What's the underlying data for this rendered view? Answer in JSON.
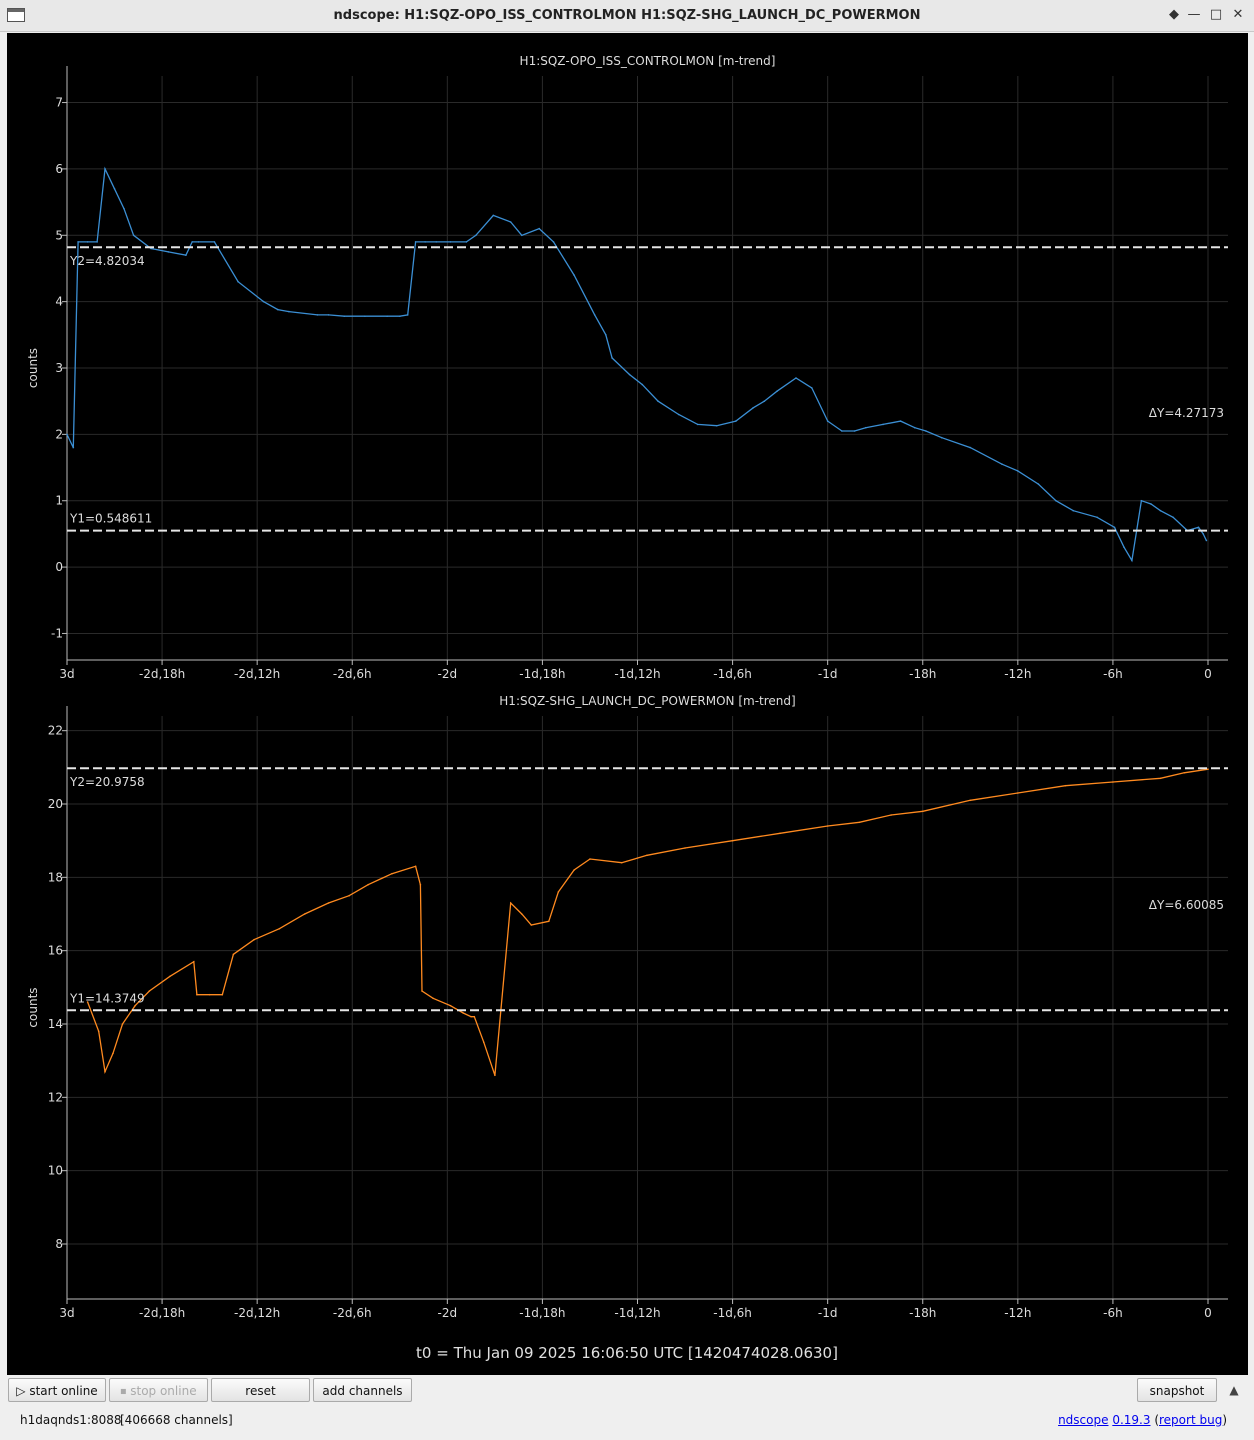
{
  "window": {
    "title": "ndscope: H1:SQZ-OPO_ISS_CONTROLMON H1:SQZ-SHG_LAUNCH_DC_POWERMON",
    "buttons": {
      "close": "✕",
      "minimize": "—",
      "maximize": "□",
      "restore": "◆"
    }
  },
  "colors": {
    "background": "#000000",
    "grid": "#2a2a2a",
    "axis": "#bbbbbb",
    "text": "#dddddd",
    "series1": "#3b8fd4",
    "series2": "#ff8a1f",
    "cursor": "#e6e6e6"
  },
  "x_ticks": [
    "3d",
    "-2d,18h",
    "-2d,12h",
    "-2d,6h",
    "-2d",
    "-1d,18h",
    "-1d,12h",
    "-1d,6h",
    "-1d",
    "-18h",
    "-12h",
    "-6h",
    "0"
  ],
  "t0": "t0 = Thu Jan 09 2025 16:06:50 UTC [1420474028.0630]",
  "chart_data": [
    {
      "type": "line",
      "title": "H1:SQZ-OPO_ISS_CONTROLMON [m-trend]",
      "ylabel": "counts",
      "xlabel": "",
      "x_unit": "hours relative to t0",
      "xlim": [
        -72,
        0
      ],
      "ylim": [
        -1.4,
        7.4
      ],
      "yticks": [
        -1,
        0,
        1,
        2,
        3,
        4,
        5,
        6,
        7
      ],
      "grid": true,
      "cursors": {
        "y1": 0.548611,
        "y1_label": "Y1=0.548611",
        "y2": 4.82034,
        "y2_label": "Y2=4.82034",
        "delta_label": "ΔY=4.27173"
      },
      "series": [
        {
          "x": [
            -72,
            -71.6,
            -71.3,
            -70.7,
            -70.1,
            -69.6,
            -69.0,
            -68.4,
            -67.8,
            -66.7,
            -65.6,
            -64.5,
            -64.1,
            -63.7,
            -62.7,
            -61.2,
            -59.6,
            -58.7,
            -58.0,
            -56.2,
            -55.5,
            -54.5,
            -53.2,
            -51.8,
            -51.0,
            -50.5,
            -50.0,
            -49.4,
            -48.7,
            -47.8,
            -46.8,
            -46.2,
            -45.1,
            -44.0,
            -43.3,
            -42.2,
            -41.3,
            -40.0,
            -38.7,
            -38.0,
            -37.6,
            -36.5,
            -35.7,
            -34.7,
            -33.4,
            -32.2,
            -31.0,
            -29.8,
            -28.7,
            -28.0,
            -27.2,
            -26.0,
            -25.0,
            -24.0,
            -23.1,
            -22.3,
            -21.6,
            -20.5,
            -19.4,
            -18.5,
            -17.8,
            -16.8,
            -15.0,
            -13.0,
            -12.0,
            -10.7,
            -9.6,
            -8.5,
            -7.0,
            -5.9,
            -5.3,
            -4.8,
            -4.2,
            -3.6,
            -3.0,
            -2.2,
            -1.3,
            -0.6,
            -0.3,
            -0.1
          ],
          "y": [
            2.0,
            1.8,
            4.9,
            4.9,
            4.9,
            6.0,
            5.7,
            5.4,
            5.0,
            4.8,
            4.75,
            4.7,
            4.9,
            4.9,
            4.9,
            4.3,
            4.0,
            3.88,
            3.85,
            3.8,
            3.8,
            3.78,
            3.78,
            3.78,
            3.78,
            3.8,
            4.9,
            4.9,
            4.9,
            4.9,
            4.9,
            5.0,
            5.3,
            5.2,
            5.0,
            5.1,
            4.9,
            4.4,
            3.8,
            3.5,
            3.15,
            2.9,
            2.75,
            2.5,
            2.3,
            2.15,
            2.13,
            2.2,
            2.4,
            2.5,
            2.65,
            2.85,
            2.7,
            2.2,
            2.05,
            2.05,
            2.1,
            2.15,
            2.2,
            2.1,
            2.05,
            1.95,
            1.8,
            1.55,
            1.45,
            1.25,
            1.0,
            0.85,
            0.75,
            0.6,
            0.3,
            0.1,
            1.0,
            0.95,
            0.85,
            0.75,
            0.55,
            0.6,
            0.5,
            0.4
          ]
        }
      ]
    },
    {
      "type": "line",
      "title": "H1:SQZ-SHG_LAUNCH_DC_POWERMON [m-trend]",
      "ylabel": "counts",
      "xlabel": "",
      "x_unit": "hours relative to t0",
      "xlim": [
        -72,
        0
      ],
      "ylim": [
        6.5,
        22.4
      ],
      "yticks": [
        8,
        10,
        12,
        14,
        16,
        18,
        20,
        22
      ],
      "grid": true,
      "cursors": {
        "y1": 14.3749,
        "y1_label": "Y1=14.3749",
        "y2": 20.9758,
        "y2_label": "Y2=20.9758",
        "delta_label": "ΔY=6.60085"
      },
      "series": [
        {
          "x": [
            -70.7,
            -70.0,
            -69.6,
            -69.1,
            -68.5,
            -67.7,
            -66.8,
            -65.5,
            -64.0,
            -63.8,
            -63.0,
            -62.2,
            -61.5,
            -60.2,
            -58.6,
            -57.0,
            -55.5,
            -54.2,
            -53.0,
            -51.5,
            -50.0,
            -49.7,
            -49.6,
            -48.9,
            -47.8,
            -47.0,
            -46.5,
            -46.3,
            -45.7,
            -45.0,
            -44.0,
            -43.3,
            -42.7,
            -41.6,
            -41.0,
            -40.0,
            -39.0,
            -37.0,
            -35.4,
            -33.0,
            -30.0,
            -27.0,
            -24.0,
            -22.0,
            -20.0,
            -18.0,
            -15.0,
            -12.0,
            -9.0,
            -6.0,
            -3.0,
            -1.5,
            0
          ],
          "y": [
            14.6,
            13.8,
            12.7,
            13.2,
            14.0,
            14.5,
            14.9,
            15.3,
            15.7,
            14.8,
            14.8,
            14.8,
            15.9,
            16.3,
            16.6,
            17.0,
            17.3,
            17.5,
            17.8,
            18.1,
            18.3,
            17.8,
            14.9,
            14.7,
            14.5,
            14.3,
            14.2,
            14.2,
            13.5,
            12.6,
            17.3,
            17.0,
            16.7,
            16.8,
            17.6,
            18.2,
            18.5,
            18.4,
            18.6,
            18.8,
            19.0,
            19.2,
            19.4,
            19.5,
            19.7,
            19.8,
            20.1,
            20.3,
            20.5,
            20.6,
            20.7,
            20.85,
            20.95
          ]
        }
      ]
    }
  ],
  "toolbar": {
    "start_online": "▷ start online",
    "stop_online": "⏹ stop online",
    "reset": "reset",
    "add_channels": "add channels",
    "snapshot": "snapshot",
    "collapse": "▲"
  },
  "status": {
    "server": "h1daqnds1:8088",
    "channels": "[406668 channels]",
    "app_link": "ndscope",
    "version_link": "0.19.3",
    "bug_link": "report bug",
    "bug_open": "(",
    "bug_close": ")"
  }
}
